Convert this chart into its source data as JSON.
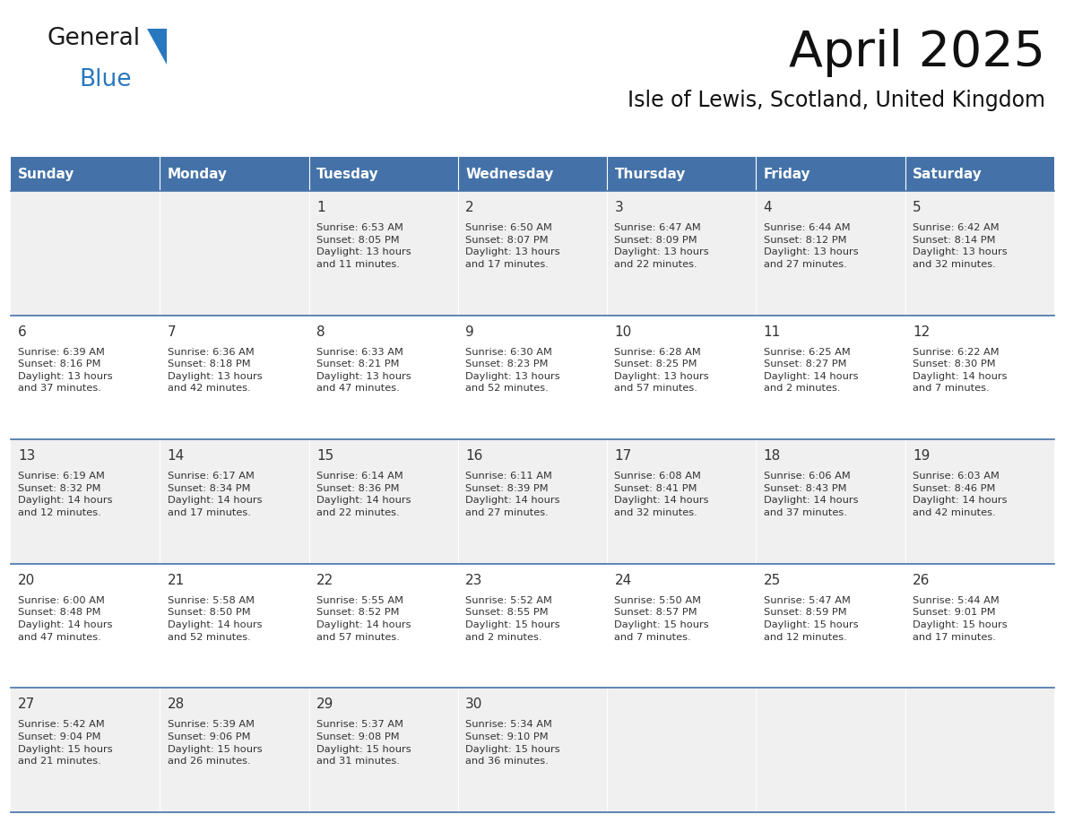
{
  "title": "April 2025",
  "subtitle": "Isle of Lewis, Scotland, United Kingdom",
  "days_of_week": [
    "Sunday",
    "Monday",
    "Tuesday",
    "Wednesday",
    "Thursday",
    "Friday",
    "Saturday"
  ],
  "header_bg": "#4472a8",
  "header_text": "#ffffff",
  "row_bg_light": "#f0f0f0",
  "row_bg_white": "#ffffff",
  "cell_text": "#333333",
  "border_color": "#4472a8",
  "weeks": [
    [
      {
        "day": "",
        "info": ""
      },
      {
        "day": "",
        "info": ""
      },
      {
        "day": "1",
        "info": "Sunrise: 6:53 AM\nSunset: 8:05 PM\nDaylight: 13 hours\nand 11 minutes."
      },
      {
        "day": "2",
        "info": "Sunrise: 6:50 AM\nSunset: 8:07 PM\nDaylight: 13 hours\nand 17 minutes."
      },
      {
        "day": "3",
        "info": "Sunrise: 6:47 AM\nSunset: 8:09 PM\nDaylight: 13 hours\nand 22 minutes."
      },
      {
        "day": "4",
        "info": "Sunrise: 6:44 AM\nSunset: 8:12 PM\nDaylight: 13 hours\nand 27 minutes."
      },
      {
        "day": "5",
        "info": "Sunrise: 6:42 AM\nSunset: 8:14 PM\nDaylight: 13 hours\nand 32 minutes."
      }
    ],
    [
      {
        "day": "6",
        "info": "Sunrise: 6:39 AM\nSunset: 8:16 PM\nDaylight: 13 hours\nand 37 minutes."
      },
      {
        "day": "7",
        "info": "Sunrise: 6:36 AM\nSunset: 8:18 PM\nDaylight: 13 hours\nand 42 minutes."
      },
      {
        "day": "8",
        "info": "Sunrise: 6:33 AM\nSunset: 8:21 PM\nDaylight: 13 hours\nand 47 minutes."
      },
      {
        "day": "9",
        "info": "Sunrise: 6:30 AM\nSunset: 8:23 PM\nDaylight: 13 hours\nand 52 minutes."
      },
      {
        "day": "10",
        "info": "Sunrise: 6:28 AM\nSunset: 8:25 PM\nDaylight: 13 hours\nand 57 minutes."
      },
      {
        "day": "11",
        "info": "Sunrise: 6:25 AM\nSunset: 8:27 PM\nDaylight: 14 hours\nand 2 minutes."
      },
      {
        "day": "12",
        "info": "Sunrise: 6:22 AM\nSunset: 8:30 PM\nDaylight: 14 hours\nand 7 minutes."
      }
    ],
    [
      {
        "day": "13",
        "info": "Sunrise: 6:19 AM\nSunset: 8:32 PM\nDaylight: 14 hours\nand 12 minutes."
      },
      {
        "day": "14",
        "info": "Sunrise: 6:17 AM\nSunset: 8:34 PM\nDaylight: 14 hours\nand 17 minutes."
      },
      {
        "day": "15",
        "info": "Sunrise: 6:14 AM\nSunset: 8:36 PM\nDaylight: 14 hours\nand 22 minutes."
      },
      {
        "day": "16",
        "info": "Sunrise: 6:11 AM\nSunset: 8:39 PM\nDaylight: 14 hours\nand 27 minutes."
      },
      {
        "day": "17",
        "info": "Sunrise: 6:08 AM\nSunset: 8:41 PM\nDaylight: 14 hours\nand 32 minutes."
      },
      {
        "day": "18",
        "info": "Sunrise: 6:06 AM\nSunset: 8:43 PM\nDaylight: 14 hours\nand 37 minutes."
      },
      {
        "day": "19",
        "info": "Sunrise: 6:03 AM\nSunset: 8:46 PM\nDaylight: 14 hours\nand 42 minutes."
      }
    ],
    [
      {
        "day": "20",
        "info": "Sunrise: 6:00 AM\nSunset: 8:48 PM\nDaylight: 14 hours\nand 47 minutes."
      },
      {
        "day": "21",
        "info": "Sunrise: 5:58 AM\nSunset: 8:50 PM\nDaylight: 14 hours\nand 52 minutes."
      },
      {
        "day": "22",
        "info": "Sunrise: 5:55 AM\nSunset: 8:52 PM\nDaylight: 14 hours\nand 57 minutes."
      },
      {
        "day": "23",
        "info": "Sunrise: 5:52 AM\nSunset: 8:55 PM\nDaylight: 15 hours\nand 2 minutes."
      },
      {
        "day": "24",
        "info": "Sunrise: 5:50 AM\nSunset: 8:57 PM\nDaylight: 15 hours\nand 7 minutes."
      },
      {
        "day": "25",
        "info": "Sunrise: 5:47 AM\nSunset: 8:59 PM\nDaylight: 15 hours\nand 12 minutes."
      },
      {
        "day": "26",
        "info": "Sunrise: 5:44 AM\nSunset: 9:01 PM\nDaylight: 15 hours\nand 17 minutes."
      }
    ],
    [
      {
        "day": "27",
        "info": "Sunrise: 5:42 AM\nSunset: 9:04 PM\nDaylight: 15 hours\nand 21 minutes."
      },
      {
        "day": "28",
        "info": "Sunrise: 5:39 AM\nSunset: 9:06 PM\nDaylight: 15 hours\nand 26 minutes."
      },
      {
        "day": "29",
        "info": "Sunrise: 5:37 AM\nSunset: 9:08 PM\nDaylight: 15 hours\nand 31 minutes."
      },
      {
        "day": "30",
        "info": "Sunrise: 5:34 AM\nSunset: 9:10 PM\nDaylight: 15 hours\nand 36 minutes."
      },
      {
        "day": "",
        "info": ""
      },
      {
        "day": "",
        "info": ""
      },
      {
        "day": "",
        "info": ""
      }
    ]
  ],
  "logo_general_color": "#1a1a1a",
  "logo_blue_color": "#2878c0",
  "logo_triangle_color": "#2878c0"
}
